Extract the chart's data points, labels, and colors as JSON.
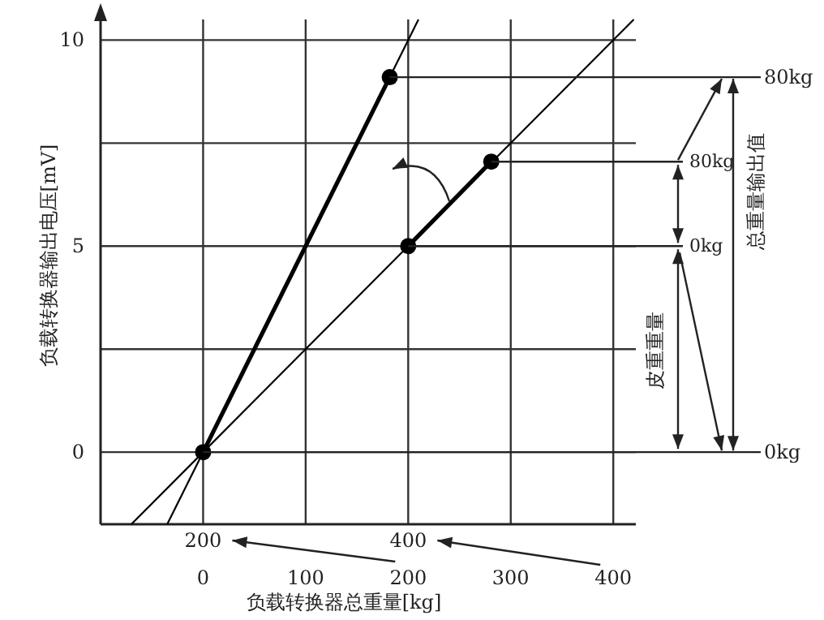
{
  "chart_data": {
    "type": "line",
    "xlabel": "负载转换器总重量[kg]",
    "ylabel": "负载转换器输出电压[mV]",
    "xlim": [
      -100,
      422
    ],
    "ylim": [
      -1.75,
      10.5
    ],
    "xticks": [
      0,
      100,
      200,
      300,
      400
    ],
    "yticks": [
      0,
      {
        "value": 2.5,
        "label": null
      },
      5,
      {
        "value": 7.5,
        "label": null
      },
      10
    ],
    "grid": true,
    "series": [
      {
        "color": "#000000",
        "marker": "none",
        "x": [
          -70,
          420
        ],
        "values": [
          -1.75,
          10.5
        ]
      },
      {
        "color": "#000000",
        "marker": "none",
        "x": [
          -35,
          210
        ],
        "values": [
          -1.75,
          10.5
        ]
      },
      {
        "color": "#000000",
        "marker": "circle",
        "x": [
          0,
          182
        ],
        "values": [
          0,
          9.1
        ]
      },
      {
        "color": "#000000",
        "marker": "circle",
        "x": [
          200,
          281
        ],
        "values": [
          5,
          7.05
        ]
      }
    ],
    "annotations": [
      {
        "text": "80kg",
        "x": 182,
        "y": 9.1
      },
      {
        "text": "80kg",
        "x": 281,
        "y": 7.05
      },
      {
        "text": "0kg",
        "x": 200,
        "y": 5
      },
      {
        "text": "0kg",
        "x": 0,
        "y": 0
      },
      "皮重重量",
      "总重量输出值",
      "200",
      "400"
    ]
  }
}
